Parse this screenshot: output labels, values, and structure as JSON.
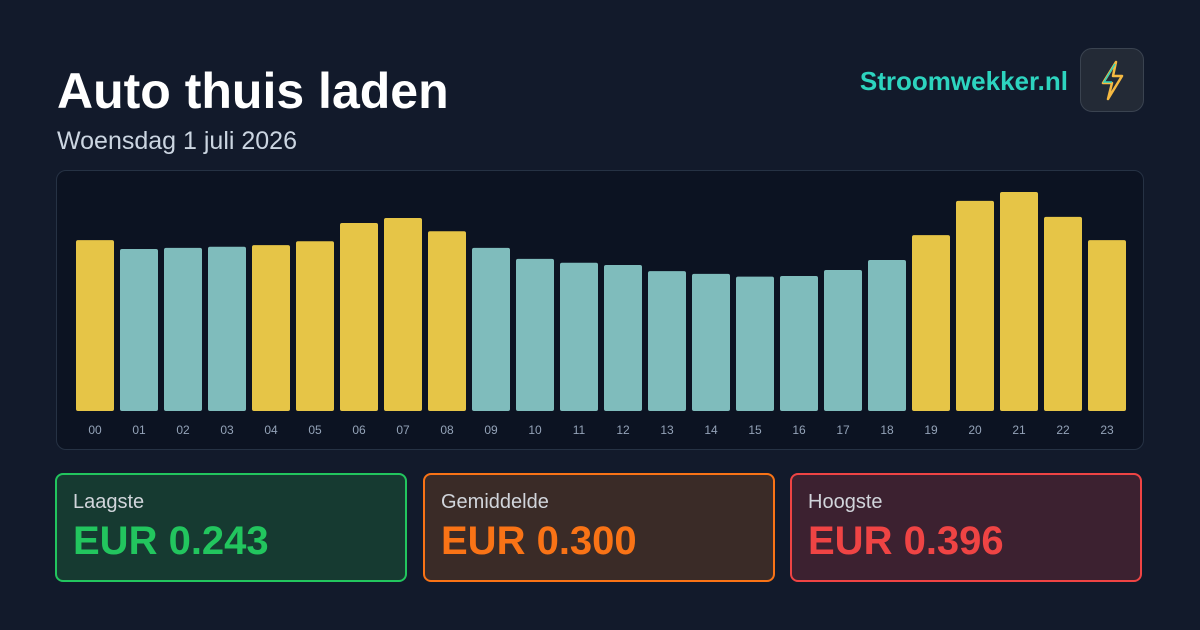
{
  "header": {
    "title": "Auto thuis laden",
    "subtitle": "Woensdag 1 juli 2026",
    "brand": "Stroomwekker.nl"
  },
  "chart_data": {
    "type": "bar",
    "categories": [
      "00",
      "01",
      "02",
      "03",
      "04",
      "05",
      "06",
      "07",
      "08",
      "09",
      "10",
      "11",
      "12",
      "13",
      "14",
      "15",
      "16",
      "17",
      "18",
      "19",
      "20",
      "21",
      "22",
      "23"
    ],
    "values": [
      0.309,
      0.293,
      0.295,
      0.297,
      0.3,
      0.307,
      0.34,
      0.349,
      0.325,
      0.295,
      0.275,
      0.268,
      0.264,
      0.253,
      0.248,
      0.243,
      0.244,
      0.255,
      0.273,
      0.318,
      0.38,
      0.396,
      0.351,
      0.309
    ],
    "colors": [
      "#e6c547",
      "#7fbcbc",
      "#7fbcbc",
      "#7fbcbc",
      "#e6c547",
      "#e6c547",
      "#e6c547",
      "#e6c547",
      "#e6c547",
      "#7fbcbc",
      "#7fbcbc",
      "#7fbcbc",
      "#7fbcbc",
      "#7fbcbc",
      "#7fbcbc",
      "#7fbcbc",
      "#7fbcbc",
      "#7fbcbc",
      "#7fbcbc",
      "#e6c547",
      "#e6c547",
      "#e6c547",
      "#e6c547",
      "#e6c547"
    ]
  },
  "stats": [
    {
      "label": "Laagste",
      "value": "EUR 0.243"
    },
    {
      "label": "Gemiddelde",
      "value": "EUR 0.300"
    },
    {
      "label": "Hoogste",
      "value": "EUR 0.396"
    }
  ]
}
